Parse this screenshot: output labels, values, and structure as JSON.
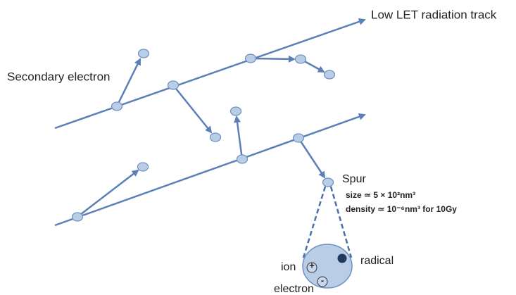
{
  "labels": {
    "track": "Low LET radiation track",
    "secondary": "Secondary electron",
    "spur": "Spur",
    "size": "size ≃ 5 × 10²nm³",
    "density": "density ≃ 10⁻⁶nm³ for 10Gy",
    "ion": "ion",
    "radical": "radical",
    "electron": "electron",
    "plus": "+",
    "minus": "-"
  }
}
